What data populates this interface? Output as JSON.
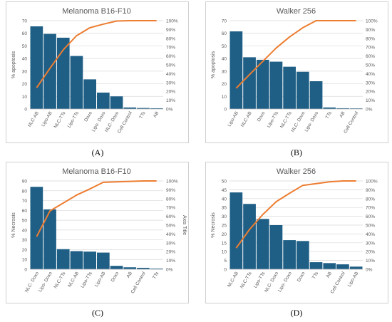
{
  "colors": {
    "bar": "#1f5f86",
    "line": "#ed7d31",
    "grid": "#d9d9d9",
    "text": "#595959"
  },
  "panel_labels": [
    "(A)",
    "(B)",
    "(C)",
    "(D)"
  ],
  "chart_data": [
    {
      "type": "bar",
      "title": "Melanoma B16-F10",
      "ylabel": "% apoptosis",
      "y2label": "",
      "categories": [
        "NLC-AB",
        "Lipo-AB",
        "NLC-TTs",
        "Lipo-TTs",
        "Doxo",
        "Lipo- Doxo",
        "NLC- Doxo",
        "Cell Control",
        "TTs",
        "AB"
      ],
      "values": [
        65.5,
        59.5,
        56.5,
        42,
        23.5,
        13,
        10,
        1.2,
        0.8,
        0.6
      ],
      "cumulative_percent": [
        24,
        46,
        67,
        83,
        92,
        96,
        99.6,
        100,
        100,
        100
      ],
      "ylim": [
        0,
        70
      ],
      "yticks": [
        0,
        10,
        20,
        30,
        40,
        50,
        60,
        70
      ],
      "y2ticks": [
        "0%",
        "10%",
        "20%",
        "30%",
        "40%",
        "50%",
        "60%",
        "70%",
        "80%",
        "90%",
        "100%"
      ],
      "grid": true
    },
    {
      "type": "bar",
      "title": "Walker 256",
      "ylabel": "% apoptosis",
      "y2label": "",
      "categories": [
        "Lipo-AB",
        "NLC-AB",
        "Doxo",
        "Lipo-TTs",
        "NLC-TTs",
        "NLC- Doxo",
        "Lipo- Doxo",
        "TTs",
        "AB",
        "Cell Control"
      ],
      "values": [
        61.5,
        41,
        39,
        37.5,
        33.5,
        29.5,
        22,
        1.2,
        0.6,
        0.5
      ],
      "cumulative_percent": [
        23.5,
        39,
        54,
        69,
        81.5,
        92,
        100,
        100,
        100,
        100
      ],
      "ylim": [
        0,
        70
      ],
      "yticks": [
        0,
        10,
        20,
        30,
        40,
        50,
        60,
        70
      ],
      "y2ticks": [
        "0%",
        "10%",
        "20%",
        "30%",
        "40%",
        "50%",
        "60%",
        "70%",
        "80%",
        "90%",
        "100%"
      ],
      "grid": true
    },
    {
      "type": "bar",
      "title": "Melanoma B16-F10",
      "ylabel": "% Necrosis",
      "y2label": "Axis Title",
      "categories": [
        "NLC- Doxo",
        "Lipo- Doxo",
        "NLC-TTs",
        "NLC-AB",
        "Lipo-TTs",
        "Lipo-AB",
        "Doxo",
        "AB",
        "Cell Control",
        "TTs"
      ],
      "values": [
        84,
        61,
        20.5,
        18.5,
        18,
        17,
        3.5,
        2,
        1.5,
        0.8
      ],
      "cumulative_percent": [
        37,
        66,
        75,
        84,
        91,
        98.5,
        99,
        99.5,
        100,
        100
      ],
      "ylim": [
        0,
        90
      ],
      "yticks": [
        0,
        10,
        20,
        30,
        40,
        50,
        60,
        70,
        80,
        90
      ],
      "y2ticks": [
        "0%",
        "10%",
        "20%",
        "30%",
        "40%",
        "50%",
        "60%",
        "70%",
        "80%",
        "90%",
        "100%"
      ],
      "grid": true
    },
    {
      "type": "bar",
      "title": "Walker 256",
      "ylabel": "% Necrosis",
      "y2label": "",
      "categories": [
        "NLC-AB",
        "NLC-TTs",
        "Lipo-TTs",
        "NLC- Doxo",
        "Lipo- Doxo",
        "Doxo",
        "TTs",
        "AB",
        "Cell Control",
        "Lipo-AB"
      ],
      "values": [
        43.5,
        37,
        28.5,
        25,
        16.5,
        16,
        4,
        3.5,
        2.8,
        1.5
      ],
      "cumulative_percent": [
        24,
        45,
        62,
        76.5,
        86,
        95,
        97,
        99,
        100,
        100
      ],
      "ylim": [
        0,
        50
      ],
      "yticks": [
        0,
        5,
        10,
        15,
        20,
        25,
        30,
        35,
        40,
        45,
        50
      ],
      "y2ticks": [
        "0%",
        "10%",
        "20%",
        "30%",
        "40%",
        "50%",
        "60%",
        "70%",
        "80%",
        "90%",
        "100%"
      ],
      "grid": true
    }
  ]
}
